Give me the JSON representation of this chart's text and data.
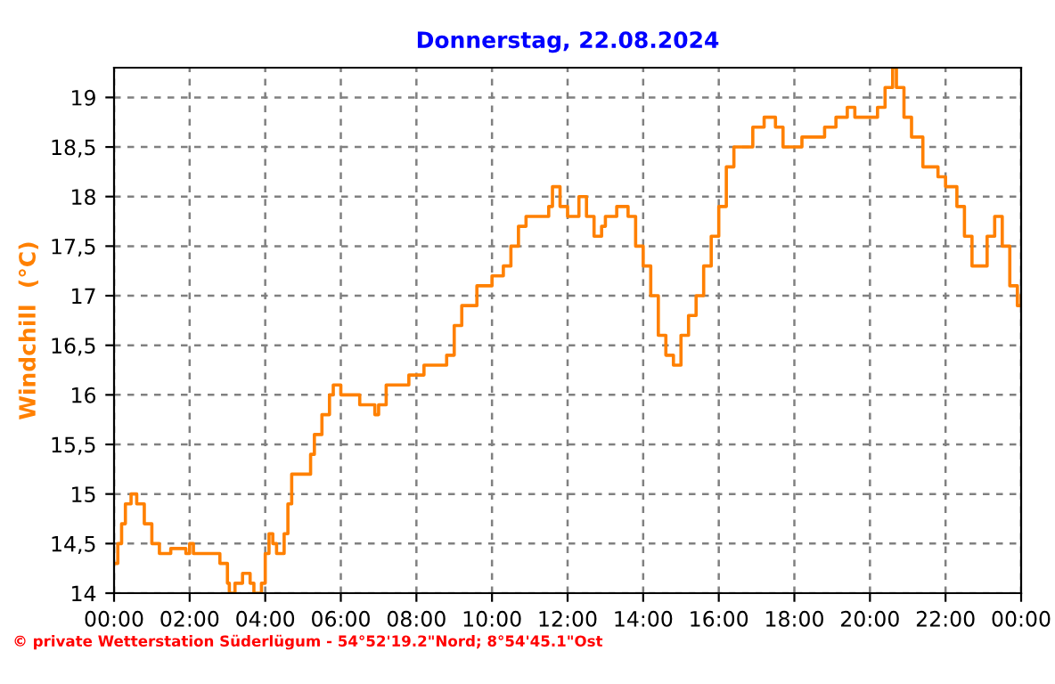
{
  "chart_data": {
    "type": "step",
    "title": "Donnerstag, 22.08.2024",
    "ylabel": "Windchill  (°C)",
    "annotations": [
      "© private Wetterstation Süderlügum - 54°52'19.2\"Nord; 8°54'45.1\"Ost"
    ],
    "x": [
      0,
      0.1,
      0.2,
      0.3,
      0.45,
      0.6,
      0.8,
      1.0,
      1.2,
      1.5,
      1.9,
      2.0,
      2.1,
      2.6,
      2.8,
      3.0,
      3.05,
      3.2,
      3.4,
      3.6,
      3.7,
      3.9,
      4.0,
      4.1,
      4.2,
      4.3,
      4.5,
      4.6,
      4.7,
      5.0,
      5.2,
      5.3,
      5.5,
      5.7,
      5.8,
      6.0,
      6.4,
      6.5,
      6.9,
      7.0,
      7.2,
      7.8,
      8.0,
      8.2,
      8.6,
      8.8,
      9.0,
      9.2,
      9.6,
      10.0,
      10.3,
      10.5,
      10.7,
      10.9,
      11.2,
      11.5,
      11.6,
      11.8,
      12.0,
      12.3,
      12.5,
      12.7,
      12.9,
      13.0,
      13.3,
      13.6,
      13.8,
      14.0,
      14.2,
      14.4,
      14.6,
      14.8,
      15.0,
      15.2,
      15.4,
      15.6,
      15.8,
      16.0,
      16.2,
      16.4,
      16.7,
      16.9,
      17.2,
      17.5,
      17.7,
      18.0,
      18.2,
      18.5,
      18.8,
      19.1,
      19.4,
      19.6,
      20.0,
      20.2,
      20.4,
      20.6,
      20.7,
      20.9,
      21.1,
      21.4,
      21.8,
      22.0,
      22.3,
      22.5,
      22.7,
      22.9,
      23.1,
      23.3,
      23.5,
      23.7,
      23.9,
      24.0
    ],
    "series": [
      {
        "color": "#ff8000",
        "values": [
          14.3,
          14.5,
          14.7,
          14.9,
          15.0,
          14.9,
          14.7,
          14.5,
          14.4,
          14.45,
          14.4,
          14.5,
          14.4,
          14.4,
          14.3,
          14.1,
          14.0,
          14.1,
          14.2,
          14.1,
          14.0,
          14.1,
          14.4,
          14.6,
          14.5,
          14.4,
          14.6,
          14.9,
          15.2,
          15.2,
          15.4,
          15.6,
          15.8,
          16.0,
          16.1,
          16.0,
          16.0,
          15.9,
          15.8,
          15.9,
          16.1,
          16.2,
          16.2,
          16.3,
          16.3,
          16.4,
          16.7,
          16.9,
          17.1,
          17.2,
          17.3,
          17.5,
          17.7,
          17.8,
          17.8,
          17.9,
          18.1,
          17.9,
          17.8,
          18.0,
          17.8,
          17.6,
          17.7,
          17.8,
          17.9,
          17.8,
          17.5,
          17.3,
          17.0,
          16.6,
          16.4,
          16.3,
          16.6,
          16.8,
          17.0,
          17.3,
          17.6,
          17.9,
          18.3,
          18.5,
          18.5,
          18.7,
          18.8,
          18.7,
          18.5,
          18.5,
          18.6,
          18.6,
          18.7,
          18.8,
          18.9,
          18.8,
          18.8,
          18.9,
          19.1,
          19.3,
          19.1,
          18.8,
          18.6,
          18.3,
          18.2,
          18.1,
          17.9,
          17.6,
          17.3,
          17.3,
          17.6,
          17.8,
          17.5,
          17.1,
          16.9,
          17.0
        ]
      }
    ],
    "xlim": [
      0,
      24
    ],
    "ylim": [
      14,
      19.3
    ],
    "xticks": [
      {
        "value": 0,
        "label": "00:00"
      },
      {
        "value": 2,
        "label": "02:00"
      },
      {
        "value": 4,
        "label": "04:00"
      },
      {
        "value": 6,
        "label": "06:00"
      },
      {
        "value": 8,
        "label": "08:00"
      },
      {
        "value": 10,
        "label": "10:00"
      },
      {
        "value": 12,
        "label": "12:00"
      },
      {
        "value": 14,
        "label": "14:00"
      },
      {
        "value": 16,
        "label": "16:00"
      },
      {
        "value": 18,
        "label": "18:00"
      },
      {
        "value": 20,
        "label": "20:00"
      },
      {
        "value": 22,
        "label": "22:00"
      },
      {
        "value": 24,
        "label": "00:00"
      }
    ],
    "yticks": [
      14,
      {
        "value": 14.5,
        "label": "14,5"
      },
      15,
      {
        "value": 15.5,
        "label": "15,5"
      },
      16,
      {
        "value": 16.5,
        "label": "16,5"
      },
      17,
      {
        "value": 17.5,
        "label": "17,5"
      },
      18,
      {
        "value": 18.5,
        "label": "18,5"
      },
      19
    ],
    "grid": true,
    "line_style": "solid",
    "marker": "none"
  }
}
